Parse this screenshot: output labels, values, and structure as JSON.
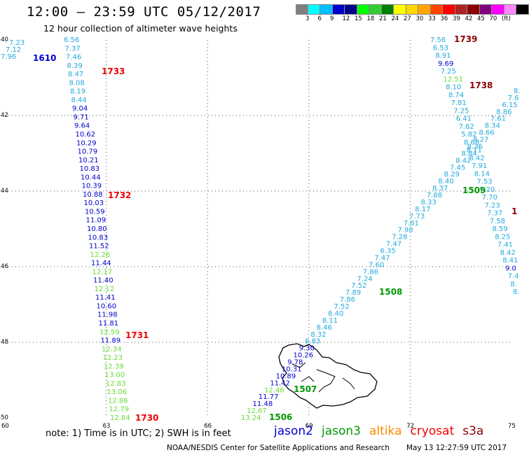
{
  "header": {
    "title": "12:00 – 23:59 UTC 05/12/2017",
    "subtitle": "12 hour collection of altimeter wave heights"
  },
  "colorbar": {
    "colors": [
      "#7f7f7f",
      "#00ffff",
      "#00bfff",
      "#0000cd",
      "#00008b",
      "#00ff00",
      "#32cd32",
      "#008000",
      "#ffff00",
      "#ffd700",
      "#ffa500",
      "#ff4500",
      "#ff0000",
      "#b22222",
      "#8b0000",
      "#800080",
      "#ff00ff",
      "#ff88ff",
      "#000000"
    ],
    "labels": [
      "3",
      "6",
      "9",
      "12",
      "15",
      "18",
      "21",
      "24",
      "27",
      "30",
      "33",
      "36",
      "39",
      "42",
      "45",
      "70",
      "(ft)"
    ]
  },
  "axes": {
    "lon_ticks": [
      "60",
      "63",
      "66",
      "69",
      "72",
      "75"
    ],
    "lat_ticks": [
      "-40",
      "-42",
      "-44",
      "-46",
      "-48",
      "-50"
    ]
  },
  "satellite_colors": {
    "jason2": "#0000cd",
    "jason3": "#009900",
    "altika": "#ff8800",
    "cryosat": "#ee0000",
    "s3a": "#8b0000",
    "cyan": "#22aadd",
    "lightgreen": "#66dd33"
  },
  "tracks": {
    "left_cyan": {
      "color": "cyan",
      "values": [
        "7.23",
        "7.12",
        "7.96"
      ],
      "positions": [
        [
          13,
          64
        ],
        [
          8,
          74
        ],
        [
          1,
          84
        ]
      ]
    },
    "left_col": {
      "values": [
        "6.56",
        "7.37",
        "7.46",
        "8.39",
        "8.47",
        "8.08",
        "8.19",
        "8.44",
        "9.04",
        "9.71",
        "9.64",
        "10.62",
        "10.29",
        "10.79",
        "10.21",
        "10.83",
        "10.44",
        "10.39",
        "10.88",
        "10.03",
        "10.59",
        "11.09",
        "10.80",
        "10.83",
        "11.52",
        "12.26",
        "11.44",
        "12.17",
        "11.40",
        "12.12",
        "11.41",
        "10.60",
        "11.98",
        "11.81",
        "12.59",
        "11.89",
        "12.34",
        "12.23",
        "12.39",
        "13.00",
        "12.83",
        "13.06",
        "12.86",
        "12.79",
        "12.84"
      ],
      "colors": [
        "cyan",
        "cyan",
        "cyan",
        "cyan",
        "cyan",
        "cyan",
        "cyan",
        "cyan",
        "jason2",
        "jason2",
        "jason2",
        "jason2",
        "jason2",
        "jason2",
        "jason2",
        "jason2",
        "jason2",
        "jason2",
        "jason2",
        "jason2",
        "jason2",
        "jason2",
        "jason2",
        "jason2",
        "jason2",
        "lightgreen",
        "jason2",
        "lightgreen",
        "jason2",
        "lightgreen",
        "jason2",
        "jason2",
        "jason2",
        "jason2",
        "lightgreen",
        "jason2",
        "lightgreen",
        "lightgreen",
        "lightgreen",
        "lightgreen",
        "lightgreen",
        "lightgreen",
        "lightgreen",
        "lightgreen",
        "lightgreen"
      ]
    },
    "center_up": {
      "values": [
        "13.24",
        "12.67",
        "11.48",
        "11.77",
        "12.46",
        "11.42",
        "10.89",
        "10.31",
        "9.78",
        "10.26",
        "9.30",
        "8.83",
        "8.32",
        "8.46",
        "8.11",
        "8.40",
        "7.52",
        "7.86",
        "7.89",
        "7.52",
        "7.24",
        "7.86",
        "7.60",
        "7.47",
        "6.35",
        "7.47",
        "7.28",
        "7.98",
        "7.81",
        "7.73",
        "8.17",
        "8.33",
        "7.88",
        "8.37",
        "8.40",
        "8.29",
        "7.45",
        "8.42",
        "8.84",
        "8.36",
        "8.27",
        "8.66",
        "8.34",
        "7.61",
        "8.86",
        "6.15",
        "7.6",
        "8."
      ],
      "colors": [
        "lightgreen",
        "lightgreen",
        "jason2",
        "jason2",
        "lightgreen",
        "jason2",
        "jason2",
        "jason2",
        "jason2",
        "jason2",
        "jason2",
        "cyan",
        "cyan",
        "cyan",
        "cyan",
        "cyan",
        "cyan",
        "cyan",
        "cyan",
        "cyan",
        "cyan",
        "cyan",
        "cyan",
        "cyan",
        "cyan",
        "cyan",
        "cyan",
        "cyan",
        "cyan",
        "cyan",
        "cyan",
        "cyan",
        "cyan",
        "cyan",
        "cyan",
        "cyan",
        "cyan",
        "cyan",
        "cyan",
        "cyan",
        "cyan",
        "cyan",
        "cyan",
        "cyan",
        "cyan",
        "cyan",
        "cyan",
        "cyan"
      ]
    },
    "right_down": {
      "values": [
        "7.56",
        "6.53",
        "8.91",
        "9.69",
        "7.25",
        "12.51",
        "8.10",
        "8.74",
        "7.81",
        "7.25",
        "6.41",
        "7.62",
        "5.82",
        "8.68",
        "8.11",
        "8.42",
        "7.91",
        "8.14",
        "7.53",
        "7.20",
        "7.70",
        "7.23",
        "7.37",
        "7.58",
        "8.59",
        "8.25",
        "7.41",
        "8.42",
        "8.41",
        "9.0",
        "7.4",
        "8.",
        "8."
      ],
      "colors": [
        "cyan",
        "cyan",
        "cyan",
        "jason2",
        "cyan",
        "lightgreen",
        "cyan",
        "cyan",
        "cyan",
        "cyan",
        "cyan",
        "cyan",
        "cyan",
        "cyan",
        "cyan",
        "cyan",
        "cyan",
        "cyan",
        "cyan",
        "cyan",
        "cyan",
        "cyan",
        "cyan",
        "cyan",
        "cyan",
        "cyan",
        "cyan",
        "cyan",
        "cyan",
        "jason2",
        "cyan",
        "cyan",
        "cyan"
      ]
    }
  },
  "time_labels": [
    {
      "text": "1610",
      "color": "jason2"
    },
    {
      "text": "1733",
      "color": "cryosat"
    },
    {
      "text": "1732",
      "color": "cryosat"
    },
    {
      "text": "1731",
      "color": "cryosat"
    },
    {
      "text": "1730",
      "color": "cryosat"
    },
    {
      "text": "1739",
      "color": "s3a"
    },
    {
      "text": "1738",
      "color": "s3a"
    },
    {
      "text": "1",
      "color": "s3a"
    },
    {
      "text": "1509",
      "color": "jason3"
    },
    {
      "text": "1508",
      "color": "jason3"
    },
    {
      "text": "1507",
      "color": "jason3"
    },
    {
      "text": "1506",
      "color": "jason3"
    }
  ],
  "note": "note: 1) Time is in UTC; 2) SWH is in feet",
  "legend": {
    "jason2": "jason2",
    "jason3": "jason3",
    "altika": "altika",
    "cryosat": "cryosat",
    "s3a": "s3a"
  },
  "footer": {
    "credit": "NOAA/NESDIS Center for Satellite Applications and Research",
    "timestamp": "May 13 12:27:59 UTC 2017"
  }
}
